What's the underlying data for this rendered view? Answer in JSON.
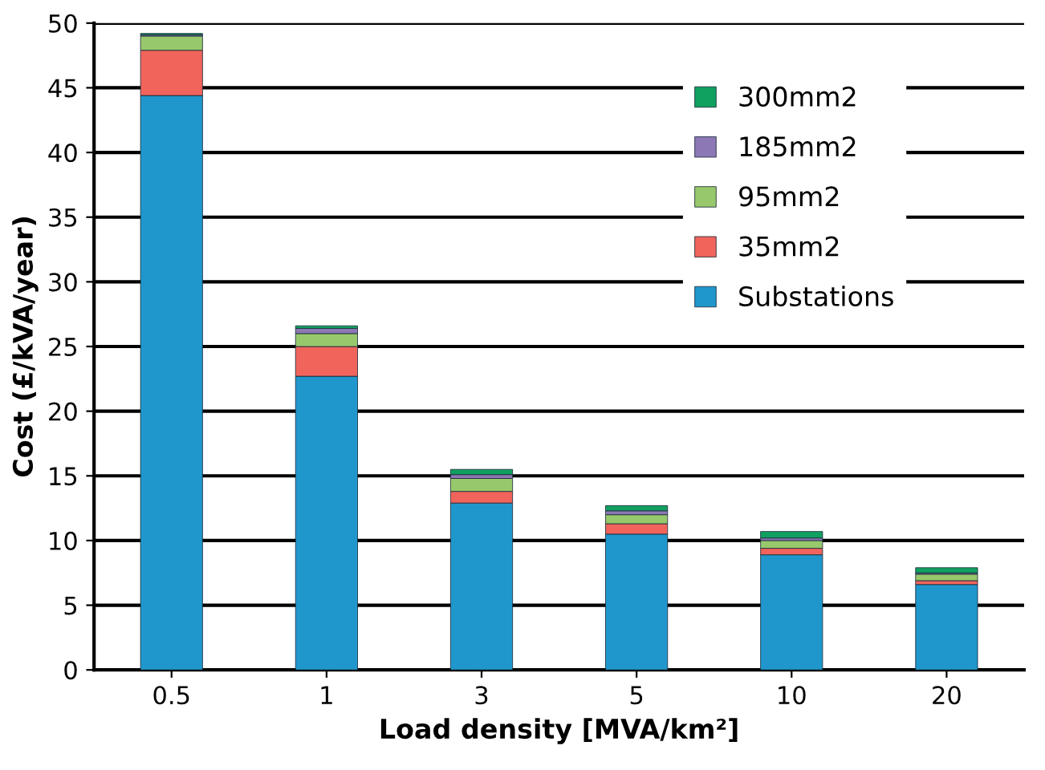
{
  "chart_data": {
    "type": "bar",
    "stacked": true,
    "xlabel": "Load density [MVA/km²]",
    "ylabel": "Cost (£/kVA/year)",
    "categories": [
      "0.5",
      "1",
      "3",
      "5",
      "10",
      "20"
    ],
    "series": [
      {
        "name": "Substations",
        "color": "#2097cc",
        "values": [
          44.4,
          22.7,
          12.9,
          10.5,
          8.9,
          6.6
        ]
      },
      {
        "name": "35mm2",
        "color": "#f0645c",
        "values": [
          3.5,
          2.3,
          0.9,
          0.8,
          0.5,
          0.3
        ]
      },
      {
        "name": "95mm2",
        "color": "#98c86c",
        "values": [
          1.1,
          1.0,
          1.0,
          0.7,
          0.6,
          0.5
        ]
      },
      {
        "name": "185mm2",
        "color": "#8c78b4",
        "values": [
          0.1,
          0.4,
          0.3,
          0.3,
          0.2,
          0.1
        ]
      },
      {
        "name": "300mm2",
        "color": "#10a060",
        "values": [
          0.1,
          0.2,
          0.4,
          0.4,
          0.5,
          0.4
        ]
      }
    ],
    "ylim": [
      0,
      50
    ],
    "yticks": [
      0,
      5,
      10,
      15,
      20,
      25,
      30,
      35,
      40,
      45,
      50
    ],
    "grid": "y",
    "legend": "top right"
  }
}
